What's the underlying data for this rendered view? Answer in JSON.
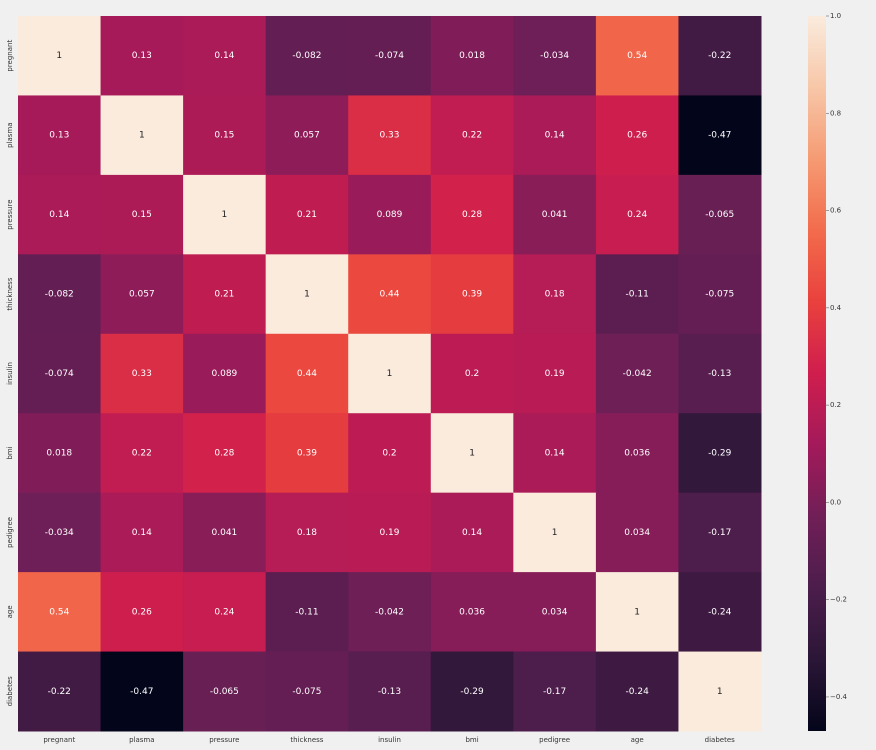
{
  "chart_data": {
    "type": "heatmap",
    "x_categories": [
      "pregnant",
      "plasma",
      "pressure",
      "thickness",
      "insulin",
      "bmi",
      "pedigree",
      "age",
      "diabetes"
    ],
    "y_categories": [
      "pregnant",
      "plasma",
      "pressure",
      "thickness",
      "insulin",
      "bmi",
      "pedigree",
      "age",
      "diabetes"
    ],
    "values": [
      [
        1,
        0.13,
        0.14,
        -0.082,
        -0.074,
        0.018,
        -0.034,
        0.54,
        -0.22
      ],
      [
        0.13,
        1,
        0.15,
        0.057,
        0.33,
        0.22,
        0.14,
        0.26,
        -0.47
      ],
      [
        0.14,
        0.15,
        1,
        0.21,
        0.089,
        0.28,
        0.041,
        0.24,
        -0.065
      ],
      [
        -0.082,
        0.057,
        0.21,
        1,
        0.44,
        0.39,
        0.18,
        -0.11,
        -0.075
      ],
      [
        -0.074,
        0.33,
        0.089,
        0.44,
        1,
        0.2,
        0.19,
        -0.042,
        -0.13
      ],
      [
        0.018,
        0.22,
        0.28,
        0.39,
        0.2,
        1,
        0.14,
        0.036,
        -0.29
      ],
      [
        -0.034,
        0.14,
        0.041,
        0.18,
        0.19,
        0.14,
        1,
        0.034,
        -0.17
      ],
      [
        0.54,
        0.26,
        0.24,
        -0.11,
        -0.042,
        0.036,
        0.034,
        1,
        -0.24
      ],
      [
        -0.22,
        -0.47,
        -0.065,
        -0.075,
        -0.13,
        -0.29,
        -0.17,
        -0.24,
        1
      ]
    ],
    "zlim": [
      -0.47,
      1
    ],
    "colorscale": [
      "#03051a",
      "#2b1637",
      "#4c1d4b",
      "#701f57",
      "#a31a5a",
      "#cf1e4e",
      "#e9413d",
      "#f26c4c",
      "#f59b73",
      "#f7c7a8",
      "#faebdd"
    ],
    "colorbar_ticks": [
      {
        "value": 1.0,
        "label": "1.0"
      },
      {
        "value": 0.8,
        "label": "0.8"
      },
      {
        "value": 0.6,
        "label": "0.6"
      },
      {
        "value": 0.4,
        "label": "0.4"
      },
      {
        "value": 0.2,
        "label": "0.2"
      },
      {
        "value": 0.0,
        "label": "0.0"
      },
      {
        "value": -0.2,
        "label": "−0.2"
      },
      {
        "value": -0.4,
        "label": "−0.4"
      }
    ]
  }
}
